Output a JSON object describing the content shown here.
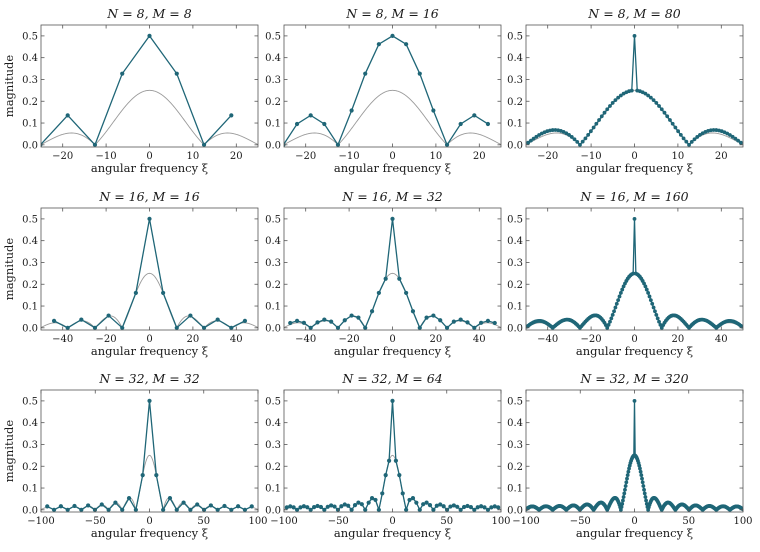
{
  "colors": {
    "sampled": "#1f6677",
    "continuous": "#9a9a9a"
  },
  "chart_data": [
    {
      "type": "line",
      "title": "N = 8,  M = 8",
      "xlabel": "angular frequency ξ",
      "ylabel": "magnitude",
      "N": 8,
      "M": 8,
      "xlim": [
        -25,
        25
      ],
      "ylim": [
        -0.01,
        0.55
      ],
      "xticks": [
        -20,
        -10,
        0,
        10,
        20
      ],
      "yticks": [
        0.0,
        0.1,
        0.2,
        0.3,
        0.4,
        0.5
      ],
      "series": [
        {
          "values": [
            [
              -25.13,
              0.0
            ],
            [
              -18.85,
              0.1353
            ],
            [
              -12.57,
              0.0
            ],
            [
              -6.28,
              0.3266
            ],
            [
              0.0,
              0.5
            ],
            [
              6.28,
              0.3266
            ],
            [
              12.57,
              0.0
            ],
            [
              18.85,
              0.1353
            ]
          ]
        }
      ]
    },
    {
      "type": "line",
      "title": "N = 8,  M = 16",
      "xlabel": "angular frequency ξ",
      "ylabel": "",
      "N": 8,
      "M": 16,
      "xlim": [
        -25,
        25
      ],
      "ylim": [
        -0.01,
        0.55
      ],
      "xticks": [
        -20,
        -10,
        0,
        10,
        20
      ],
      "yticks": [
        0.0,
        0.1,
        0.2,
        0.3,
        0.4,
        0.5
      ],
      "series": [
        {
          "values": [
            [
              -25.13,
              0.0
            ],
            [
              -21.99,
              0.0957
            ],
            [
              -18.85,
              0.1353
            ],
            [
              -15.71,
              0.0957
            ],
            [
              -12.57,
              0.0
            ],
            [
              -9.42,
              0.1577
            ],
            [
              -6.28,
              0.3266
            ],
            [
              -3.14,
              0.4619
            ],
            [
              0.0,
              0.5
            ],
            [
              3.14,
              0.4619
            ],
            [
              6.28,
              0.3266
            ],
            [
              9.42,
              0.1577
            ],
            [
              12.57,
              0.0
            ],
            [
              15.71,
              0.0957
            ],
            [
              18.85,
              0.1353
            ],
            [
              21.99,
              0.0957
            ]
          ]
        }
      ]
    },
    {
      "type": "line",
      "title": "N = 8,  M = 80",
      "xlabel": "angular frequency ξ",
      "ylabel": "",
      "N": 8,
      "M": 80,
      "xlim": [
        -25,
        25
      ],
      "ylim": [
        -0.01,
        0.55
      ],
      "xticks": [
        -20,
        -10,
        0,
        10,
        20
      ],
      "yticks": [
        0.0,
        0.1,
        0.2,
        0.3,
        0.4,
        0.5
      ],
      "series": [
        {
          "values": []
        }
      ]
    },
    {
      "type": "line",
      "title": "N = 16,  M = 16",
      "xlabel": "angular frequency ξ",
      "ylabel": "magnitude",
      "N": 16,
      "M": 16,
      "xlim": [
        -50,
        50
      ],
      "ylim": [
        -0.01,
        0.55
      ],
      "xticks": [
        -40,
        -20,
        0,
        20,
        40
      ],
      "yticks": [
        0.0,
        0.1,
        0.2,
        0.3,
        0.4,
        0.5
      ],
      "series": [
        {
          "values": []
        }
      ]
    },
    {
      "type": "line",
      "title": "N = 16,  M = 32",
      "xlabel": "angular frequency ξ",
      "ylabel": "",
      "N": 16,
      "M": 32,
      "xlim": [
        -50,
        50
      ],
      "ylim": [
        -0.01,
        0.55
      ],
      "xticks": [
        -40,
        -20,
        0,
        20,
        40
      ],
      "yticks": [
        0.0,
        0.1,
        0.2,
        0.3,
        0.4,
        0.5
      ],
      "series": [
        {
          "values": []
        }
      ]
    },
    {
      "type": "line",
      "title": "N = 16,  M = 160",
      "xlabel": "angular frequency ξ",
      "ylabel": "",
      "N": 16,
      "M": 160,
      "xlim": [
        -50,
        50
      ],
      "ylim": [
        -0.01,
        0.55
      ],
      "xticks": [
        -40,
        -20,
        0,
        20,
        40
      ],
      "yticks": [
        0.0,
        0.1,
        0.2,
        0.3,
        0.4,
        0.5
      ],
      "series": [
        {
          "values": []
        }
      ]
    },
    {
      "type": "line",
      "title": "N = 32,  M = 32",
      "xlabel": "angular frequency ξ",
      "ylabel": "magnitude",
      "N": 32,
      "M": 32,
      "xlim": [
        -100,
        100
      ],
      "ylim": [
        -0.01,
        0.55
      ],
      "xticks": [
        -100,
        -50,
        0,
        50,
        100
      ],
      "yticks": [
        0.0,
        0.1,
        0.2,
        0.3,
        0.4,
        0.5
      ],
      "series": [
        {
          "values": []
        }
      ]
    },
    {
      "type": "line",
      "title": "N = 32,  M = 64",
      "xlabel": "angular frequency ξ",
      "ylabel": "",
      "N": 32,
      "M": 64,
      "xlim": [
        -100,
        100
      ],
      "ylim": [
        -0.01,
        0.55
      ],
      "xticks": [
        -100,
        -50,
        0,
        50,
        100
      ],
      "yticks": [
        0.0,
        0.1,
        0.2,
        0.3,
        0.4,
        0.5
      ],
      "series": [
        {
          "values": []
        }
      ]
    },
    {
      "type": "line",
      "title": "N = 32,  M = 320",
      "xlabel": "angular frequency ξ",
      "ylabel": "",
      "N": 32,
      "M": 320,
      "xlim": [
        -100,
        100
      ],
      "ylim": [
        -0.01,
        0.55
      ],
      "xticks": [
        -100,
        -50,
        0,
        50,
        100
      ],
      "yticks": [
        0.0,
        0.1,
        0.2,
        0.3,
        0.4,
        0.5
      ],
      "series": [
        {
          "values": []
        }
      ]
    }
  ]
}
